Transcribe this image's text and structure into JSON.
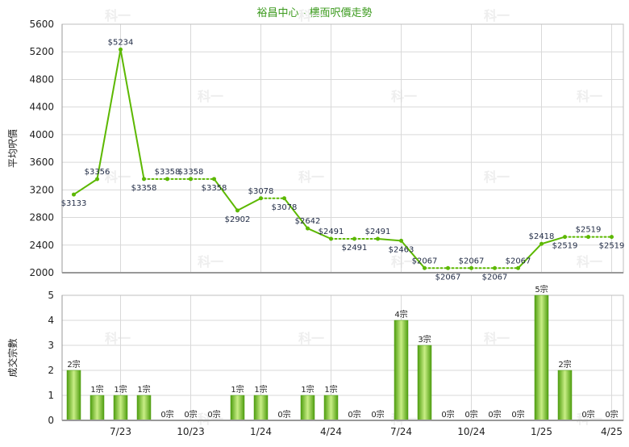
{
  "title": "裕昌中心 - 樓面呎價走勢",
  "colors": {
    "accent": "#5cb800",
    "bar_light": "#c9ee86",
    "bar_dark": "#4f9e10",
    "title": "#3b9a1d"
  },
  "watermark": "科一",
  "chart_data": [
    {
      "type": "line",
      "title": "裕昌中心 - 樓面呎價走勢",
      "ylabel": "平均呎價",
      "ylim": [
        2000,
        5600
      ],
      "yticks": [
        2000,
        2400,
        2800,
        3200,
        3600,
        4000,
        4400,
        4800,
        5200,
        5600
      ],
      "grid": true,
      "x_tick_labels": [
        "7/23",
        "10/23",
        "1/24",
        "4/24",
        "7/24",
        "10/24",
        "1/25",
        "4/25"
      ],
      "x_tick_index": [
        2,
        5,
        8,
        11,
        14,
        17,
        20,
        23
      ],
      "points": [
        {
          "i": 0,
          "y": 3133,
          "label": "$3133",
          "carried": false
        },
        {
          "i": 1,
          "y": 3356,
          "label": "$3356",
          "carried": false
        },
        {
          "i": 2,
          "y": 5234,
          "label": "$5234",
          "carried": false
        },
        {
          "i": 3,
          "y": 3358,
          "label": "$3358",
          "carried": false
        },
        {
          "i": 4,
          "y": 3358,
          "label": "$3358",
          "carried": true
        },
        {
          "i": 5,
          "y": 3358,
          "label": "$3358",
          "carried": true
        },
        {
          "i": 6,
          "y": 3358,
          "label": "$3358",
          "carried": true
        },
        {
          "i": 7,
          "y": 2902,
          "label": "$2902",
          "carried": false
        },
        {
          "i": 8,
          "y": 3078,
          "label": "$3078",
          "carried": false
        },
        {
          "i": 9,
          "y": 3078,
          "label": "$3078",
          "carried": true
        },
        {
          "i": 10,
          "y": 2642,
          "label": "$2642",
          "carried": false
        },
        {
          "i": 11,
          "y": 2491,
          "label": "$2491",
          "carried": false
        },
        {
          "i": 12,
          "y": 2491,
          "label": "$2491",
          "carried": true
        },
        {
          "i": 13,
          "y": 2491,
          "label": "$2491",
          "carried": true
        },
        {
          "i": 14,
          "y": 2463,
          "label": "$2463",
          "carried": false
        },
        {
          "i": 15,
          "y": 2067,
          "label": "$2067",
          "carried": false
        },
        {
          "i": 16,
          "y": 2067,
          "label": "$2067",
          "carried": true
        },
        {
          "i": 17,
          "y": 2067,
          "label": "$2067",
          "carried": true
        },
        {
          "i": 18,
          "y": 2067,
          "label": "$2067",
          "carried": true
        },
        {
          "i": 19,
          "y": 2067,
          "label": "$2067",
          "carried": true
        },
        {
          "i": 20,
          "y": 2418,
          "label": "$2418",
          "carried": false
        },
        {
          "i": 21,
          "y": 2519,
          "label": "$2519",
          "carried": false
        },
        {
          "i": 22,
          "y": 2519,
          "label": "$2519",
          "carried": true
        },
        {
          "i": 23,
          "y": 2519,
          "label": "$2519",
          "carried": true
        }
      ]
    },
    {
      "type": "bar",
      "ylabel": "成交宗數",
      "ylim": [
        0,
        5
      ],
      "yticks": [
        0,
        1,
        2,
        3,
        4,
        5
      ],
      "grid": true,
      "x_tick_labels": [
        "7/23",
        "10/23",
        "1/24",
        "4/24",
        "7/24",
        "10/24",
        "1/25",
        "4/25"
      ],
      "x_tick_index": [
        2,
        5,
        8,
        11,
        14,
        17,
        20,
        23
      ],
      "values": [
        2,
        1,
        1,
        1,
        0,
        0,
        0,
        1,
        1,
        0,
        1,
        1,
        0,
        0,
        4,
        3,
        0,
        0,
        0,
        0,
        5,
        2,
        0,
        0
      ],
      "labels": [
        "2宗",
        "1宗",
        "1宗",
        "1宗",
        "0宗",
        "0宗",
        "0宗",
        "1宗",
        "1宗",
        "0宗",
        "1宗",
        "1宗",
        "0宗",
        "0宗",
        "4宗",
        "3宗",
        "0宗",
        "0宗",
        "0宗",
        "0宗",
        "5宗",
        "2宗",
        "0宗",
        "0宗"
      ]
    }
  ]
}
